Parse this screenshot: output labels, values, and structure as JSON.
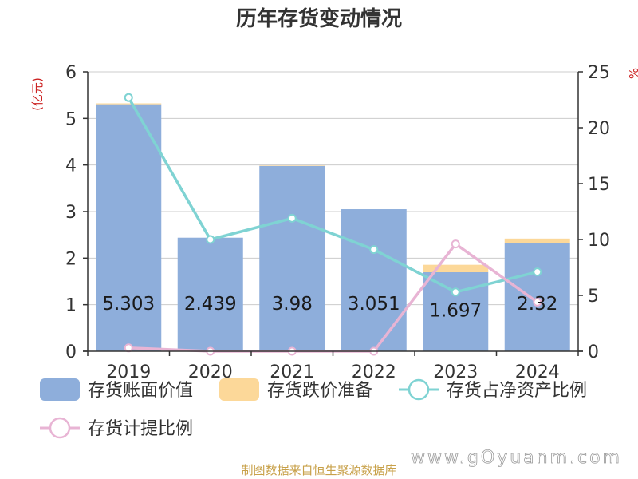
{
  "chart_data": {
    "type": "bar",
    "title": "历年存货变动情况",
    "categories": [
      "2019",
      "2020",
      "2021",
      "2022",
      "2023",
      "2024"
    ],
    "left_axis": {
      "unit": "(亿元)",
      "ylim": [
        0,
        6
      ],
      "ticks": [
        "0",
        "1",
        "2",
        "3",
        "4",
        "5",
        "6"
      ]
    },
    "right_axis": {
      "unit": "%",
      "ylim": [
        0,
        25
      ],
      "ticks": [
        "0",
        "5",
        "10",
        "15",
        "20",
        "25"
      ]
    },
    "series": [
      {
        "name": "存货账面价值",
        "type": "bar",
        "axis": "left",
        "color": "#8eaedb",
        "values": [
          5.303,
          2.439,
          3.98,
          3.051,
          1.697,
          2.32
        ],
        "labels": [
          "5.303",
          "2.439",
          "3.98",
          "3.051",
          "1.697",
          "2.32"
        ]
      },
      {
        "name": "存货跌价准备",
        "type": "bar",
        "axis": "left",
        "stacked": true,
        "color": "#fcd899",
        "values": [
          0.02,
          0.0,
          0.01,
          0.0,
          0.16,
          0.1
        ]
      },
      {
        "name": "存货占净资产比例",
        "type": "line",
        "axis": "right",
        "color": "#7fd3d3",
        "values": [
          22.7,
          10.0,
          11.9,
          9.1,
          5.3,
          7.1
        ]
      },
      {
        "name": "存货计提比例",
        "type": "line",
        "axis": "right",
        "color": "#e8b4d4",
        "values": [
          0.3,
          0.0,
          0.0,
          0.0,
          9.6,
          4.4
        ]
      }
    ],
    "grid": true,
    "legend_position": "bottom"
  },
  "footer": {
    "source": "制图数据来自恒生聚源数据库",
    "watermark": "www.gOyuanm.com"
  }
}
